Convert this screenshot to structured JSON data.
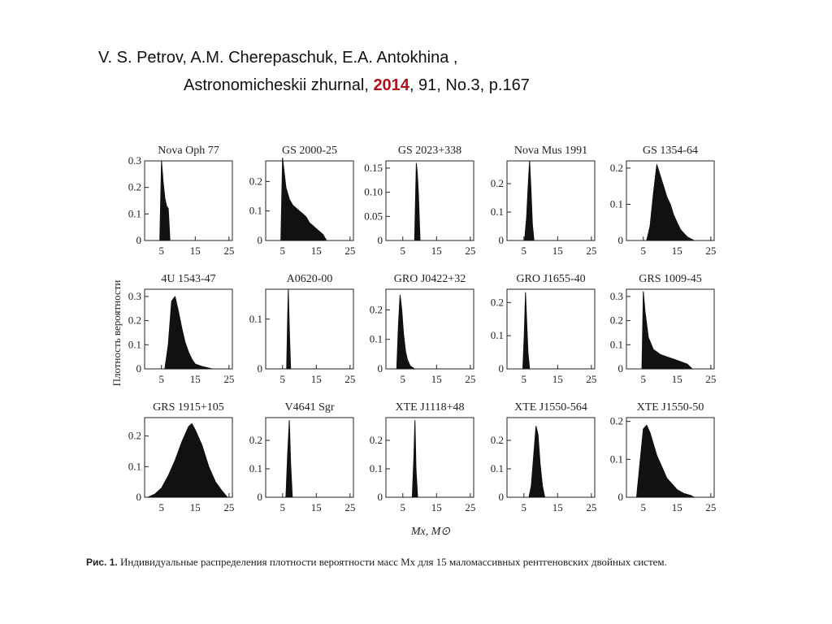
{
  "citation": {
    "line1": "V. S. Petrov, A.M. Cherepaschuk, E.A. Antokhina ,",
    "line2_prefix": "Astronomicheskii zhurnal, ",
    "year": "2014",
    "line2_suffix": ", 91, No.3, p.167"
  },
  "figure": {
    "ylabel": "Плотность вероятности",
    "xlabel": "Mx, M⊙",
    "caption_label": "Рис. 1.",
    "caption_text": "Индивидуальные распределения плотности вероятности масс Mx для 15 маломассивных рентгеновских двойных систем."
  },
  "chart_data": [
    {
      "type": "area",
      "title": "Nova Oph 77",
      "xlim": [
        0,
        26
      ],
      "ylim": [
        0,
        0.3
      ],
      "yticks": [
        0,
        0.1,
        0.2,
        0.3
      ],
      "ytick_labels": [
        "0",
        "0.1",
        "0.2",
        "0.3"
      ],
      "xticks": [
        5,
        15,
        25
      ],
      "x": [
        4.5,
        5.0,
        5.5,
        6.0,
        6.5,
        7.0,
        7.5
      ],
      "y": [
        0,
        0.3,
        0.22,
        0.16,
        0.13,
        0.12,
        0
      ]
    },
    {
      "type": "area",
      "title": "GS 2000-25",
      "xlim": [
        0,
        26
      ],
      "ylim": [
        0,
        0.27
      ],
      "yticks": [
        0,
        0.1,
        0.2
      ],
      "ytick_labels": [
        "0",
        "0.1",
        "0.2"
      ],
      "xticks": [
        5,
        15,
        25
      ],
      "x": [
        4.5,
        5,
        6,
        7,
        8,
        9,
        10,
        11,
        12,
        13,
        14,
        15,
        16,
        17,
        18
      ],
      "y": [
        0,
        0.28,
        0.18,
        0.14,
        0.12,
        0.11,
        0.1,
        0.09,
        0.08,
        0.06,
        0.05,
        0.04,
        0.03,
        0.02,
        0
      ]
    },
    {
      "type": "area",
      "title": "GS 2023+338",
      "xlim": [
        0,
        26
      ],
      "ylim": [
        0,
        0.165
      ],
      "yticks": [
        0,
        0.05,
        0.1,
        0.15
      ],
      "ytick_labels": [
        "0",
        "0.05",
        "0.10",
        "0.15"
      ],
      "xticks": [
        5,
        15,
        25
      ],
      "x": [
        8.5,
        9,
        9.3,
        9.6,
        10.1
      ],
      "y": [
        0,
        0.16,
        0.14,
        0.1,
        0
      ]
    },
    {
      "type": "area",
      "title": "Nova Mus 1991",
      "xlim": [
        0,
        26
      ],
      "ylim": [
        0,
        0.28
      ],
      "yticks": [
        0,
        0.1,
        0.2
      ],
      "ytick_labels": [
        "0",
        "0.1",
        "0.2"
      ],
      "xticks": [
        5,
        15,
        25
      ],
      "x": [
        5.2,
        5.8,
        6.3,
        6.7,
        7.1,
        7.5,
        8.0
      ],
      "y": [
        0,
        0.08,
        0.2,
        0.28,
        0.18,
        0.06,
        0
      ]
    },
    {
      "type": "area",
      "title": "GS 1354-64",
      "xlim": [
        0,
        26
      ],
      "ylim": [
        0,
        0.22
      ],
      "yticks": [
        0,
        0.1,
        0.2
      ],
      "ytick_labels": [
        "0",
        "0.1",
        "0.2"
      ],
      "xticks": [
        5,
        15,
        25
      ],
      "x": [
        6,
        7,
        8,
        9,
        10,
        11,
        12,
        13,
        14,
        15,
        16,
        17,
        18,
        19,
        20
      ],
      "y": [
        0,
        0.04,
        0.13,
        0.21,
        0.18,
        0.15,
        0.12,
        0.1,
        0.07,
        0.05,
        0.03,
        0.02,
        0.01,
        0.005,
        0
      ]
    },
    {
      "type": "area",
      "title": "4U 1543-47",
      "xlim": [
        0,
        26
      ],
      "ylim": [
        0,
        0.33
      ],
      "yticks": [
        0,
        0.1,
        0.2,
        0.3
      ],
      "ytick_labels": [
        "0",
        "0.1",
        "0.2",
        "0.3"
      ],
      "xticks": [
        5,
        15,
        25
      ],
      "x": [
        6,
        7,
        8,
        9,
        10,
        11,
        12,
        13,
        14,
        15,
        17,
        20
      ],
      "y": [
        0,
        0.1,
        0.28,
        0.3,
        0.24,
        0.17,
        0.11,
        0.07,
        0.04,
        0.02,
        0.01,
        0
      ]
    },
    {
      "type": "area",
      "title": "A0620-00",
      "xlim": [
        0,
        26
      ],
      "ylim": [
        0,
        0.16
      ],
      "yticks": [
        0,
        0.1
      ],
      "ytick_labels": [
        "0",
        "0.1"
      ],
      "xticks": [
        5,
        15,
        25
      ],
      "x": [
        6.2,
        6.5,
        6.7,
        7.0,
        7.4
      ],
      "y": [
        0,
        0.1,
        0.16,
        0.08,
        0
      ]
    },
    {
      "type": "area",
      "title": "GRO J0422+32",
      "xlim": [
        0,
        26
      ],
      "ylim": [
        0,
        0.27
      ],
      "yticks": [
        0,
        0.1,
        0.2
      ],
      "ytick_labels": [
        "0",
        "0.1",
        "0.2"
      ],
      "xticks": [
        5,
        15,
        25
      ],
      "x": [
        3.2,
        3.7,
        4.2,
        4.7,
        5.2,
        5.8,
        6.4,
        7.2,
        8.5
      ],
      "y": [
        0,
        0.15,
        0.25,
        0.2,
        0.12,
        0.06,
        0.03,
        0.01,
        0
      ]
    },
    {
      "type": "area",
      "title": "GRO J1655-40",
      "xlim": [
        0,
        26
      ],
      "ylim": [
        0,
        0.24
      ],
      "yticks": [
        0,
        0.1,
        0.2
      ],
      "ytick_labels": [
        "0",
        "0.1",
        "0.2"
      ],
      "xticks": [
        5,
        15,
        25
      ],
      "x": [
        4.7,
        5.1,
        5.5,
        5.8,
        6.2,
        6.7
      ],
      "y": [
        0,
        0.1,
        0.23,
        0.15,
        0.05,
        0
      ]
    },
    {
      "type": "area",
      "title": "GRS 1009-45",
      "xlim": [
        0,
        26
      ],
      "ylim": [
        0,
        0.33
      ],
      "yticks": [
        0,
        0.1,
        0.2,
        0.3
      ],
      "ytick_labels": [
        "0",
        "0.1",
        "0.2",
        "0.3"
      ],
      "xticks": [
        5,
        15,
        25
      ],
      "x": [
        4.6,
        5,
        5.5,
        6.5,
        8,
        10,
        12,
        14,
        16,
        18,
        19.5
      ],
      "y": [
        0,
        0.32,
        0.24,
        0.13,
        0.08,
        0.06,
        0.05,
        0.04,
        0.03,
        0.02,
        0
      ]
    },
    {
      "type": "area",
      "title": "GRS 1915+105",
      "xlim": [
        0,
        26
      ],
      "ylim": [
        0,
        0.26
      ],
      "yticks": [
        0,
        0.1,
        0.2
      ],
      "ytick_labels": [
        "0",
        "0.1",
        "0.2"
      ],
      "xticks": [
        5,
        15,
        25
      ],
      "x": [
        1,
        3,
        5,
        7,
        9,
        11,
        13,
        14,
        15,
        17,
        19,
        21,
        23,
        24.5
      ],
      "y": [
        0,
        0.01,
        0.03,
        0.07,
        0.12,
        0.18,
        0.23,
        0.24,
        0.22,
        0.17,
        0.1,
        0.05,
        0.02,
        0
      ]
    },
    {
      "type": "area",
      "title": "V4641 Sgr",
      "xlim": [
        0,
        26
      ],
      "ylim": [
        0,
        0.28
      ],
      "yticks": [
        0,
        0.1,
        0.2
      ],
      "ytick_labels": [
        "0",
        "0.1",
        "0.2"
      ],
      "xticks": [
        5,
        15,
        25
      ],
      "x": [
        6,
        6.5,
        7,
        7.4,
        7.9
      ],
      "y": [
        0,
        0.15,
        0.27,
        0.12,
        0
      ]
    },
    {
      "type": "area",
      "title": "XTE J1118+48",
      "xlim": [
        0,
        26
      ],
      "ylim": [
        0,
        0.28
      ],
      "yticks": [
        0,
        0.1,
        0.2
      ],
      "ytick_labels": [
        "0",
        "0.1",
        "0.2"
      ],
      "xticks": [
        5,
        15,
        25
      ],
      "x": [
        7.8,
        8.3,
        8.6,
        8.9,
        9.4
      ],
      "y": [
        0,
        0.15,
        0.27,
        0.1,
        0
      ]
    },
    {
      "type": "area",
      "title": "XTE J1550-564",
      "xlim": [
        0,
        26
      ],
      "ylim": [
        0,
        0.28
      ],
      "yticks": [
        0,
        0.1,
        0.2
      ],
      "ytick_labels": [
        "0",
        "0.1",
        "0.2"
      ],
      "xticks": [
        5,
        15,
        25
      ],
      "x": [
        6.5,
        7.2,
        8,
        8.6,
        9.2,
        9.8,
        10.5,
        11.2
      ],
      "y": [
        0,
        0.04,
        0.16,
        0.25,
        0.22,
        0.12,
        0.04,
        0
      ]
    },
    {
      "type": "area",
      "title": "XTE J1550-50",
      "xlim": [
        0,
        26
      ],
      "ylim": [
        0,
        0.21
      ],
      "yticks": [
        0,
        0.1,
        0.2
      ],
      "ytick_labels": [
        "0",
        "0.1",
        "0.2"
      ],
      "xticks": [
        5,
        15,
        25
      ],
      "x": [
        3,
        4,
        5,
        6,
        7,
        8,
        9,
        10,
        11,
        12,
        13,
        14,
        15,
        17,
        19,
        20
      ],
      "y": [
        0,
        0.09,
        0.18,
        0.19,
        0.17,
        0.14,
        0.11,
        0.09,
        0.07,
        0.05,
        0.04,
        0.03,
        0.02,
        0.01,
        0.005,
        0
      ]
    }
  ]
}
